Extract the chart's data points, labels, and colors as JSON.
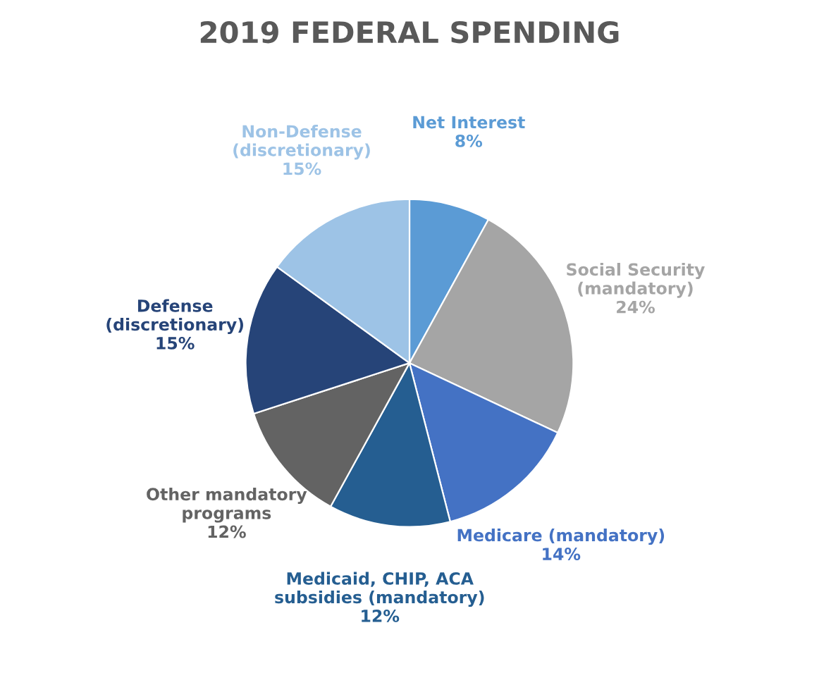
{
  "chart_data": {
    "type": "pie",
    "title": "2019 FEDERAL SPENDING",
    "categories": [
      "Net Interest",
      "Social Security\n(mandatory)",
      "Medicare (mandatory)",
      "Medicaid, CHIP, ACA\nsubsidies (mandatory)",
      "Other mandatory\nprograms",
      "Defense\n(discretionary)",
      "Non-Defense\n(discretionary)"
    ],
    "values": [
      8,
      24,
      14,
      12,
      12,
      15,
      15
    ],
    "value_labels": [
      "8%",
      "24%",
      "14%",
      "12%",
      "12%",
      "15%",
      "15%"
    ],
    "colors": [
      "#5b9bd5",
      "#a5a5a5",
      "#4472c4",
      "#255e91",
      "#636363",
      "#264478",
      "#9dc3e6"
    ]
  }
}
